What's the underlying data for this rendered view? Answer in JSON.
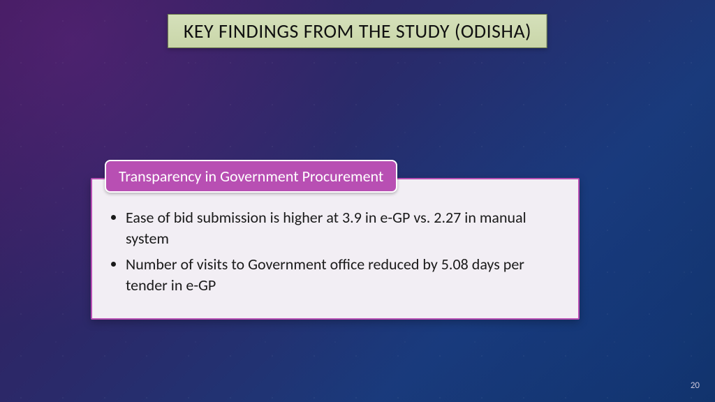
{
  "slide": {
    "title": "KEY FINDINGS FROM THE STUDY (ODISHA)",
    "title_box": {
      "bg_gradient_top": "#d5e0ba",
      "bg_gradient_bottom": "#c9d6a9",
      "border_color": "#6a7a4a",
      "text_color": "#111111",
      "font_size_pt": 21
    },
    "background": {
      "gradient_colors": [
        "#3a1a5a",
        "#2a2a6a",
        "#1a3a7a",
        "#103060"
      ],
      "star_dot_color": "rgba(255,255,255,0.06)"
    },
    "callout": {
      "header": "Transparency in Government Procurement",
      "header_bg": "#b84fb3",
      "header_border": "#ffffff",
      "header_text_color": "#ffffff",
      "body_bg": "#f2eef4",
      "body_border": "#b84fb3",
      "bullets": [
        "Ease of bid submission is higher at 3.9 in e-GP vs. 2.27 in manual system",
        " Number of visits to Government office reduced by 5.08 days per tender in e-GP"
      ],
      "bullet_text_color": "#1a1a1a",
      "bullet_font_size_pt": 17
    },
    "page_number": "20",
    "page_number_color": "#c8c4da"
  }
}
